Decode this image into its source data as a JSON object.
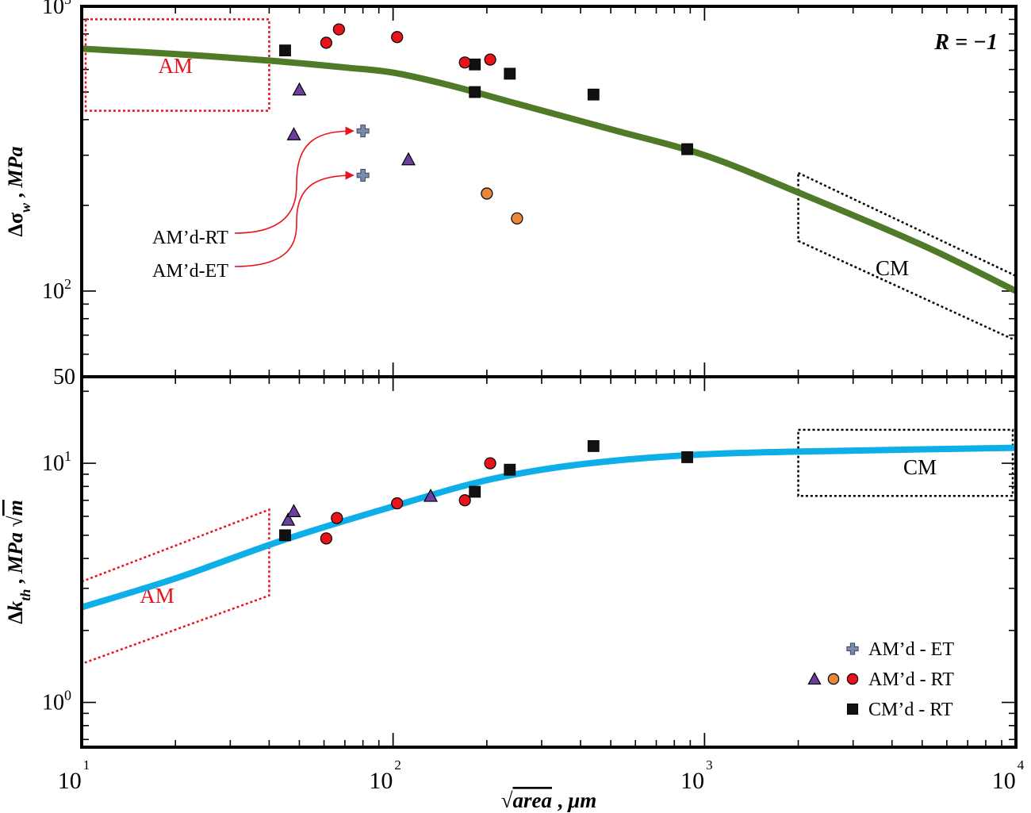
{
  "chart_data": [
    {
      "type": "scatter",
      "panel": "top",
      "xscale": "log",
      "yscale": "log",
      "ylabel_html": "Δσ<tspan font-style='italic' baseline-shift='sub' font-size='18'>w</tspan> , <tspan font-style='italic'>MPa</tspan>",
      "ylabel": "Δσw , MPa",
      "xlim": [
        10,
        10000
      ],
      "ylim": [
        50,
        1000
      ],
      "ytick_labels": [
        {
          "value": 1000,
          "base": "10",
          "exp": "3"
        },
        {
          "value": 100,
          "base": "10",
          "exp": "2"
        },
        {
          "value": 50,
          "base": "50",
          "exp": ""
        }
      ],
      "annotation_r": "R = −1",
      "region_am": {
        "label": "AM",
        "x": [
          10,
          40
        ],
        "y": [
          430,
          900
        ]
      },
      "region_cm": {
        "label": "CM",
        "parallelogram": [
          [
            2000,
            260
          ],
          [
            10000,
            113
          ],
          [
            10000,
            67
          ],
          [
            2000,
            150
          ]
        ]
      },
      "callouts": [
        {
          "label": "AM’d-RT",
          "target": [
            80,
            365
          ]
        },
        {
          "label": "AM’d-ET",
          "target": [
            80,
            255
          ]
        }
      ],
      "curve": {
        "color": "#4f7a28",
        "points": [
          [
            10,
            710
          ],
          [
            20,
            680
          ],
          [
            40,
            645
          ],
          [
            70,
            610
          ],
          [
            100,
            585
          ],
          [
            150,
            530
          ],
          [
            250,
            455
          ],
          [
            500,
            370
          ],
          [
            1000,
            300
          ],
          [
            2000,
            222
          ],
          [
            5000,
            145
          ],
          [
            10000,
            100
          ]
        ]
      },
      "series": [
        {
          "name": "CM’d - RT",
          "marker": "square",
          "color": "#111111",
          "points": [
            [
              45,
              700
            ],
            [
              183,
              625
            ],
            [
              183,
              500
            ],
            [
              237,
              580
            ],
            [
              440,
              490
            ],
            [
              880,
              315
            ]
          ]
        },
        {
          "marker": "circle",
          "color": "#e8141c",
          "points": [
            [
              61,
              745
            ],
            [
              67,
              830
            ],
            [
              103,
              780
            ],
            [
              170,
              635
            ],
            [
              205,
              650
            ]
          ]
        },
        {
          "marker": "circle",
          "color": "#e8873a",
          "points": [
            [
              200,
              220
            ],
            [
              250,
              180
            ]
          ]
        },
        {
          "marker": "triangle",
          "color": "#6b3fa0",
          "points": [
            [
              50,
              510
            ],
            [
              48,
              355
            ],
            [
              112,
              290
            ]
          ]
        },
        {
          "name": "AM’d - ET",
          "marker": "plus",
          "color": "#7a8aaa",
          "points": [
            [
              80,
              365
            ],
            [
              80,
              255
            ]
          ]
        }
      ]
    },
    {
      "type": "scatter",
      "panel": "bottom",
      "xscale": "log",
      "yscale": "log",
      "ylabel": "Δkth , MPa √m",
      "xlabel": "√area , μm",
      "xlim": [
        10,
        10000
      ],
      "ylim": [
        0.65,
        23
      ],
      "xtick_labels": [
        {
          "value": 10,
          "base": "10",
          "exp": "1"
        },
        {
          "value": 100,
          "base": "10",
          "exp": "2"
        },
        {
          "value": 1000,
          "base": "10",
          "exp": "3"
        },
        {
          "value": 10000,
          "base": "10",
          "exp": "4"
        }
      ],
      "ytick_labels": [
        {
          "value": 10,
          "base": "10",
          "exp": "1"
        },
        {
          "value": 1,
          "base": "10",
          "exp": "0"
        }
      ],
      "region_am": {
        "label": "AM",
        "parallelogram": [
          [
            10,
            3.2
          ],
          [
            40,
            6.4
          ],
          [
            40,
            2.8
          ],
          [
            10,
            1.45
          ]
        ]
      },
      "region_cm": {
        "label": "CM",
        "x": [
          2000,
          10000
        ],
        "y": [
          7.3,
          13.8
        ]
      },
      "curve": {
        "color": "#0eaee8",
        "points": [
          [
            10,
            2.5
          ],
          [
            20,
            3.3
          ],
          [
            45,
            4.8
          ],
          [
            100,
            6.6
          ],
          [
            200,
            8.5
          ],
          [
            400,
            9.9
          ],
          [
            1000,
            10.9
          ],
          [
            3000,
            11.3
          ],
          [
            10000,
            11.6
          ]
        ]
      },
      "series": [
        {
          "name": "CM’d - RT",
          "marker": "square",
          "color": "#111111",
          "points": [
            [
              45,
              5.0
            ],
            [
              183,
              7.6
            ],
            [
              237,
              9.4
            ],
            [
              440,
              11.8
            ],
            [
              880,
              10.6
            ]
          ]
        },
        {
          "marker": "circle",
          "color": "#e8141c",
          "points": [
            [
              61,
              4.85
            ],
            [
              66,
              5.9
            ],
            [
              103,
              6.8
            ],
            [
              170,
              7.0
            ],
            [
              205,
              10.0
            ]
          ]
        },
        {
          "marker": "triangle",
          "color": "#6b3fa0",
          "points": [
            [
              46,
              5.8
            ],
            [
              48,
              6.3
            ],
            [
              132,
              7.3
            ]
          ]
        }
      ],
      "legend": {
        "placement": "bottom-right",
        "entries": [
          {
            "label": "AM’d - ET",
            "markers": [
              {
                "marker": "plus",
                "color": "#7a8aaa"
              }
            ]
          },
          {
            "label": "AM’d - RT",
            "markers": [
              {
                "marker": "triangle",
                "color": "#6b3fa0"
              },
              {
                "marker": "circle",
                "color": "#e8873a"
              },
              {
                "marker": "circle",
                "color": "#e8141c"
              }
            ]
          },
          {
            "label": "CM’d - RT",
            "markers": [
              {
                "marker": "square",
                "color": "#111111"
              }
            ]
          }
        ]
      }
    }
  ]
}
